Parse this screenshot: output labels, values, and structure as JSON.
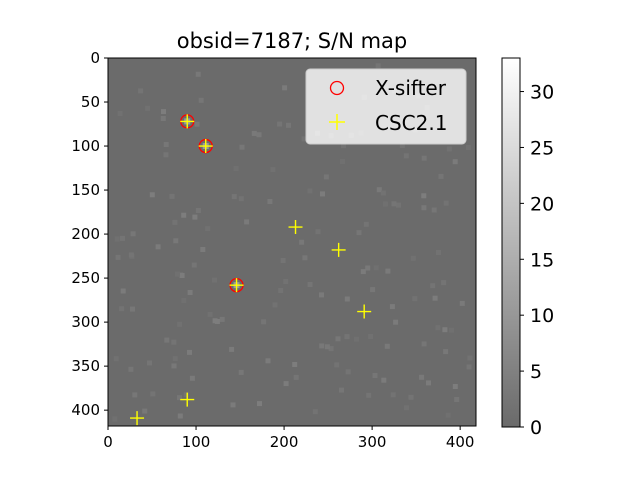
{
  "chart_data": {
    "type": "scatter",
    "title": "obsid=7187; S/N map",
    "xlabel": "",
    "ylabel": "",
    "xlim": [
      0,
      418
    ],
    "ylim": [
      418,
      0
    ],
    "x_ticks": [
      0,
      100,
      200,
      300,
      400
    ],
    "y_ticks": [
      0,
      50,
      100,
      150,
      200,
      250,
      300,
      350,
      400
    ],
    "background": "S/N map image (grayscale)",
    "grid": false,
    "legend_position": "top-right",
    "series": [
      {
        "name": "X-sifter",
        "marker": "open-circle",
        "color": "#ff0000",
        "points": [
          [
            90,
            72
          ],
          [
            111,
            100
          ],
          [
            146,
            258
          ]
        ]
      },
      {
        "name": "CSC2.1",
        "marker": "plus",
        "color": "#ffff00",
        "points": [
          [
            90,
            72
          ],
          [
            111,
            100
          ],
          [
            146,
            258
          ],
          [
            213,
            192
          ],
          [
            262,
            218
          ],
          [
            291,
            288
          ],
          [
            90,
            388
          ],
          [
            33,
            409
          ]
        ]
      }
    ],
    "colorbar": {
      "min": 0,
      "max": 33,
      "ticks": [
        0,
        5,
        10,
        15,
        20,
        25,
        30
      ]
    }
  }
}
